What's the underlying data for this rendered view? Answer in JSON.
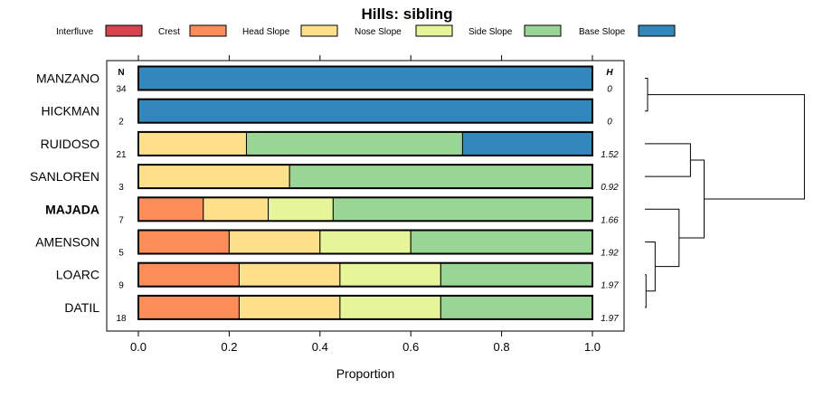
{
  "chart_data": {
    "type": "bar",
    "subtype": "stacked-horizontal-proportion",
    "title": "Hills: sibling",
    "xlabel": "Proportion",
    "xlim": [
      0,
      1
    ],
    "xticks": [
      "0.0",
      "0.2",
      "0.4",
      "0.6",
      "0.8",
      "1.0"
    ],
    "col_header_n": "N",
    "col_header_h": "H",
    "legend": [
      {
        "name": "Interfluve",
        "color": "#d7424f"
      },
      {
        "name": "Crest",
        "color": "#fc8d59"
      },
      {
        "name": "Head Slope",
        "color": "#fee08b"
      },
      {
        "name": "Nose Slope",
        "color": "#e6f598"
      },
      {
        "name": "Side Slope",
        "color": "#99d594"
      },
      {
        "name": "Base Slope",
        "color": "#3288bd"
      }
    ],
    "rows": [
      {
        "name": "MANZANO",
        "bold": false,
        "n": "34",
        "h": "0",
        "values": [
          0,
          0,
          0,
          0,
          0,
          1.0
        ]
      },
      {
        "name": "HICKMAN",
        "bold": false,
        "n": "2",
        "h": "0",
        "values": [
          0,
          0,
          0,
          0,
          0,
          1.0
        ]
      },
      {
        "name": "RUIDOSO",
        "bold": false,
        "n": "21",
        "h": "1.52",
        "values": [
          0,
          0,
          0.238,
          0,
          0.476,
          0.286
        ]
      },
      {
        "name": "SANLOREN",
        "bold": false,
        "n": "3",
        "h": "0.92",
        "values": [
          0,
          0,
          0.333,
          0,
          0.667,
          0
        ]
      },
      {
        "name": "MAJADA",
        "bold": true,
        "n": "7",
        "h": "1.66",
        "values": [
          0,
          0.143,
          0.143,
          0.143,
          0.571,
          0
        ]
      },
      {
        "name": "AMENSON",
        "bold": false,
        "n": "5",
        "h": "1.92",
        "values": [
          0,
          0.2,
          0.2,
          0.2,
          0.4,
          0
        ]
      },
      {
        "name": "LOARC",
        "bold": false,
        "n": "9",
        "h": "1.97",
        "values": [
          0,
          0.222,
          0.222,
          0.222,
          0.333,
          0
        ]
      },
      {
        "name": "DATIL",
        "bold": false,
        "n": "18",
        "h": "1.97",
        "values": [
          0,
          0.222,
          0.222,
          0.222,
          0.333,
          0
        ]
      }
    ],
    "dendrogram": {
      "note": "hierarchical clustering of rows; merge order",
      "merges": [
        {
          "a": "row:6",
          "b": "row:7",
          "height": 0.01
        },
        {
          "a": "node:0",
          "b": "row:5",
          "height": 0.09
        },
        {
          "a": "node:1",
          "b": "row:4",
          "height": 0.3
        },
        {
          "a": "row:2",
          "b": "row:3",
          "height": 0.4
        },
        {
          "a": "node:3",
          "b": "node:2",
          "height": 0.52
        },
        {
          "a": "row:0",
          "b": "row:1",
          "height": 0.0
        },
        {
          "a": "node:5",
          "b": "node:4",
          "height": 1.4
        }
      ]
    }
  }
}
